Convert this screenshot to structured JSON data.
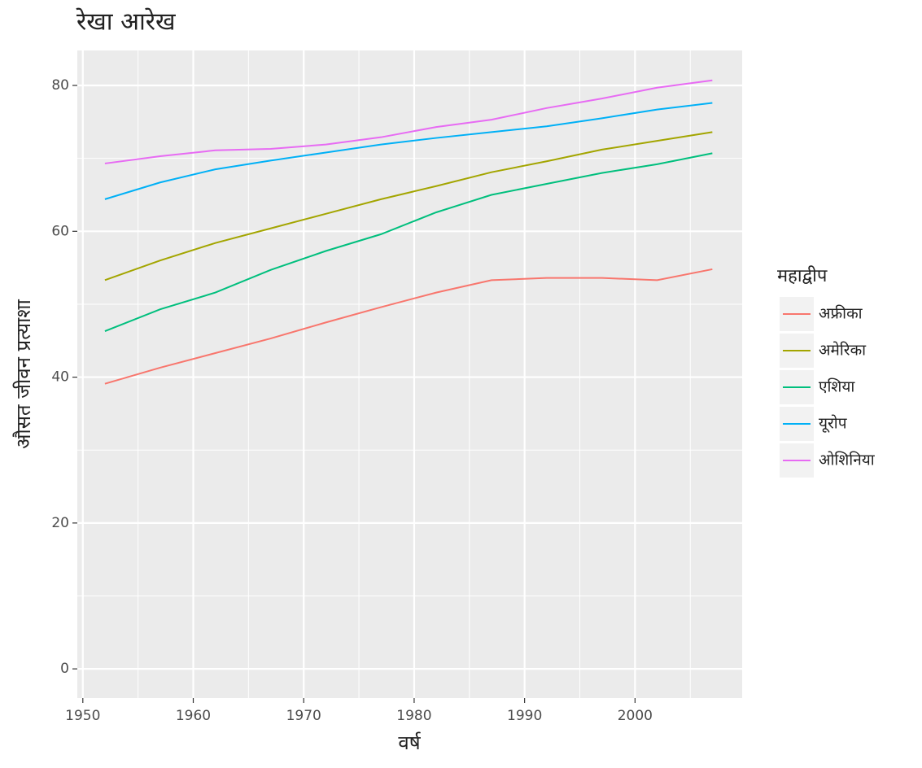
{
  "chart_data": {
    "type": "line",
    "title": "रेखा आरेख",
    "x_label": "वर्ष",
    "y_label": "औसत जीवन प्रत्याशा",
    "x": [
      1952,
      1957,
      1962,
      1967,
      1972,
      1977,
      1982,
      1987,
      1992,
      1997,
      2002,
      2007
    ],
    "series": [
      {
        "name": "अफ्रीका",
        "color": "#F8766D",
        "values": [
          39.1,
          41.3,
          43.3,
          45.3,
          47.5,
          49.6,
          51.6,
          53.3,
          53.6,
          53.6,
          53.3,
          54.8
        ]
      },
      {
        "name": "अमेरिका",
        "color": "#A3A500",
        "values": [
          53.3,
          56.0,
          58.4,
          60.4,
          62.4,
          64.4,
          66.2,
          68.1,
          69.6,
          71.2,
          72.4,
          73.6
        ]
      },
      {
        "name": "एशिया",
        "color": "#00BF7D",
        "values": [
          46.3,
          49.3,
          51.6,
          54.7,
          57.3,
          59.6,
          62.6,
          65.0,
          66.5,
          68.0,
          69.2,
          70.7
        ]
      },
      {
        "name": "यूरोप",
        "color": "#00B0F6",
        "values": [
          64.4,
          66.7,
          68.5,
          69.7,
          70.8,
          71.9,
          72.8,
          73.6,
          74.4,
          75.5,
          76.7,
          77.6
        ]
      },
      {
        "name": "ओशिनिया",
        "color": "#E76BF3",
        "values": [
          69.3,
          70.3,
          71.1,
          71.3,
          71.9,
          72.9,
          74.3,
          75.3,
          76.9,
          78.2,
          79.7,
          80.7
        ]
      }
    ],
    "legend_title": "महाद्वीप",
    "legend_position": "right",
    "xlim": [
      1949.5,
      2009.7
    ],
    "xticks": [
      1950,
      1960,
      1970,
      1980,
      1990,
      2000
    ],
    "xminor": [
      1955,
      1965,
      1975,
      1985,
      1995,
      2005
    ],
    "ylim": [
      -4.0,
      84.8
    ],
    "yticks": [
      0,
      20,
      40,
      60,
      80
    ],
    "yminor": [
      10,
      30,
      50,
      70
    ],
    "grid": true
  }
}
